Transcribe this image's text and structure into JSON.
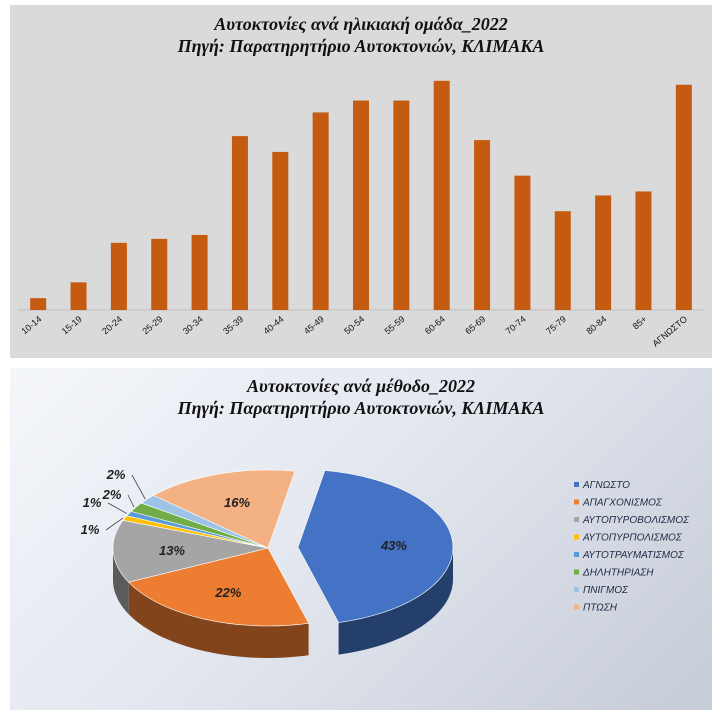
{
  "chart_data": [
    {
      "type": "bar",
      "title": "Αυτοκτονίες ανά ηλικιακή ομάδα_2022",
      "subtitle": "Πηγή: Παρατηρητήριο Αυτοκτονιών, ΚΛΙΜΑΚΑ",
      "categories": [
        "10-14",
        "15-19",
        "20-24",
        "25-29",
        "30-34",
        "35-39",
        "40-44",
        "45-49",
        "50-54",
        "55-59",
        "60-64",
        "65-69",
        "70-74",
        "75-79",
        "80-84",
        "85+",
        "ΑΓΝΩΣΤΟ"
      ],
      "values": [
        3,
        7,
        17,
        18,
        19,
        44,
        40,
        50,
        53,
        53,
        58,
        43,
        34,
        25,
        29,
        30,
        57
      ],
      "ylim": [
        0,
        62
      ],
      "grid": false,
      "color": "#c55a11"
    },
    {
      "type": "pie",
      "title": "Αυτοκτονίες ανά μέθοδο_2022",
      "subtitle": "Πηγή: Παρατηρητήριο Αυτοκτονιών, ΚΛΙΜΑΚΑ",
      "legend_position": "right",
      "slices": [
        {
          "label": "ΑΓΝΩΣΤΟ",
          "value": 43,
          "display": "43%",
          "color": "#4472c4"
        },
        {
          "label": "ΑΠΑΓΧΟΝΙΣΜΟΣ",
          "value": 22,
          "display": "22%",
          "color": "#ed7d31"
        },
        {
          "label": "ΑΥΤΟΠΥΡΟΒΟΛΙΣΜΟΣ",
          "value": 13,
          "display": "13%",
          "color": "#a5a5a5"
        },
        {
          "label": "ΑΥΤΟΠΥΡΠΟΛΙΣΜΟΣ",
          "value": 1,
          "display": "1%",
          "color": "#ffc000"
        },
        {
          "label": "ΑΥΤΟΤΡΑΥΜΑΤΙΣΜΟΣ",
          "value": 1,
          "display": "1%",
          "color": "#5b9bd5"
        },
        {
          "label": "ΔΗΛΗΤΗΡΙΑΣΗ",
          "value": 2,
          "display": "2%",
          "color": "#70ad47"
        },
        {
          "label": "ΠΝΙΓΜΟΣ",
          "value": 2,
          "display": "2%",
          "color": "#9dc3e6"
        },
        {
          "label": "ΠΤΩΣΗ",
          "value": 16,
          "display": "16%",
          "color": "#f4b183"
        }
      ]
    }
  ]
}
